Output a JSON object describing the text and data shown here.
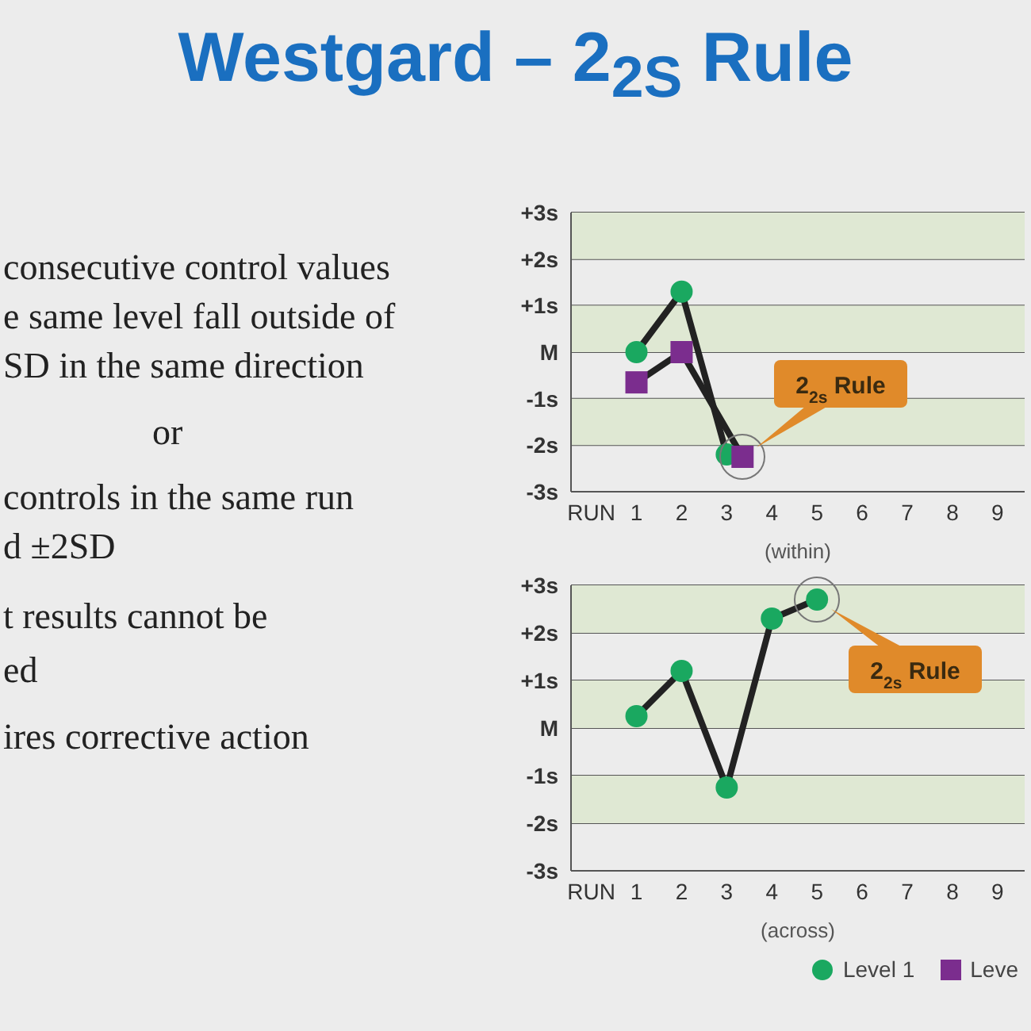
{
  "chart_data": [
    {
      "type": "line",
      "title": "Westgard – 2$_{2S}$ Rule",
      "annotations": [
        "consecutive control values",
        "e same level fall outside of",
        "SD in the same direction",
        "or",
        "controls in the same run",
        "d ±2SD",
        "t results cannot be",
        "ed",
        "ires corrective action",
        "2$_{2s}$ Rule"
      ],
      "xlabel": "(within)",
      "xlim": [
        -0.45,
        9.6
      ],
      "xticks": [
        {
          "value": 0,
          "label": "RUN"
        },
        1,
        2,
        3,
        4,
        5,
        6,
        7,
        8,
        9
      ],
      "ylim": [
        -3,
        3
      ],
      "yticks": [
        {
          "value": -3,
          "label": "-3s"
        },
        {
          "value": -2,
          "label": "-2s"
        },
        {
          "value": -1,
          "label": "-1s"
        },
        {
          "value": 0,
          "label": "M"
        },
        {
          "value": 1,
          "label": "+1s"
        },
        {
          "value": 2,
          "label": "+2s"
        },
        {
          "value": 3,
          "label": "+3s"
        }
      ],
      "grid": "y",
      "legend": false,
      "bands": [
        {
          "axis": "y",
          "from": 2,
          "to": 3,
          "color": "#dfe8d3"
        },
        {
          "axis": "y",
          "from": 0,
          "to": 1,
          "color": "#dfe8d3"
        },
        {
          "axis": "y",
          "from": -2,
          "to": -1,
          "color": "#dfe8d3"
        }
      ],
      "series": [
        {
          "color": "#1aa860",
          "marker": "circle",
          "x": [
            1,
            2,
            3
          ],
          "values": [
            0,
            1.3,
            -2.2
          ]
        },
        {
          "color": "#7b2d8e",
          "marker": "square",
          "x": [
            1,
            2,
            3.35
          ],
          "values": [
            -0.65,
            0,
            -2.25
          ]
        }
      ]
    },
    {
      "type": "line",
      "annotations": [
        "2$_{2s}$ Rule"
      ],
      "xlabel": "(across)",
      "xlim": [
        -0.45,
        9.6
      ],
      "xticks": [
        {
          "value": 0,
          "label": "RUN"
        },
        1,
        2,
        3,
        4,
        5,
        6,
        7,
        8,
        9
      ],
      "ylim": [
        -3,
        3
      ],
      "yticks": [
        {
          "value": -3,
          "label": "-3s"
        },
        {
          "value": -2,
          "label": "-2s"
        },
        {
          "value": -1,
          "label": "-1s"
        },
        {
          "value": 0,
          "label": "M"
        },
        {
          "value": 1,
          "label": "+1s"
        },
        {
          "value": 2,
          "label": "+2s"
        },
        {
          "value": 3,
          "label": "+3s"
        }
      ],
      "grid": "y",
      "legend": "bottom",
      "bands": [
        {
          "axis": "y",
          "from": 2,
          "to": 3,
          "color": "#dfe8d3"
        },
        {
          "axis": "y",
          "from": 0,
          "to": 1,
          "color": "#dfe8d3"
        },
        {
          "axis": "y",
          "from": -2,
          "to": -1,
          "color": "#dfe8d3"
        }
      ],
      "series": [
        {
          "name": "Level 1",
          "color": "#1aa860",
          "marker": "circle",
          "x": [
            1,
            2,
            3,
            4,
            5
          ],
          "values": [
            0.25,
            1.2,
            -1.25,
            2.3,
            2.7
          ]
        },
        {
          "name": "Leve",
          "color": "#7b2d8e",
          "marker": "square",
          "values": [
            null
          ]
        }
      ]
    }
  ]
}
